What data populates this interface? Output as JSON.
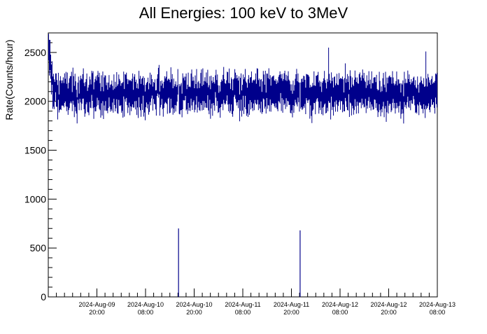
{
  "chart_data": {
    "type": "line",
    "title": "All Energies:  100 keV to 3MeV",
    "xlabel": "",
    "ylabel": "Rate(Counts/hour)",
    "ylim": [
      0,
      2700
    ],
    "yticks": [
      0,
      500,
      1000,
      1500,
      2000,
      2500
    ],
    "xlim": [
      "2024-Aug-09 08:00",
      "2024-Aug-13 08:00"
    ],
    "xticks": [
      {
        "date": "2024-Aug-09",
        "time": "20:00"
      },
      {
        "date": "2024-Aug-10",
        "time": "08:00"
      },
      {
        "date": "2024-Aug-10",
        "time": "20:00"
      },
      {
        "date": "2024-Aug-11",
        "time": "08:00"
      },
      {
        "date": "2024-Aug-11",
        "time": "20:00"
      },
      {
        "date": "2024-Aug-12",
        "time": "08:00"
      },
      {
        "date": "2024-Aug-12",
        "time": "20:00"
      },
      {
        "date": "2024-Aug-13",
        "time": "08:00"
      }
    ],
    "grid": false,
    "series": [
      {
        "color": "#00008b",
        "baseline": 2080,
        "noise": 130,
        "start_peak": 2550,
        "dips": [
          {
            "time": "2024-Aug-10 16:00",
            "min": 0,
            "max": 700
          },
          {
            "time": "2024-Aug-11 22:00",
            "min": 0,
            "max": 680
          }
        ],
        "spikes": [
          {
            "time": "2024-Aug-12 05:00",
            "value": 2550
          },
          {
            "time": "2024-Aug-13 05:00",
            "value": 2510
          }
        ]
      }
    ]
  }
}
